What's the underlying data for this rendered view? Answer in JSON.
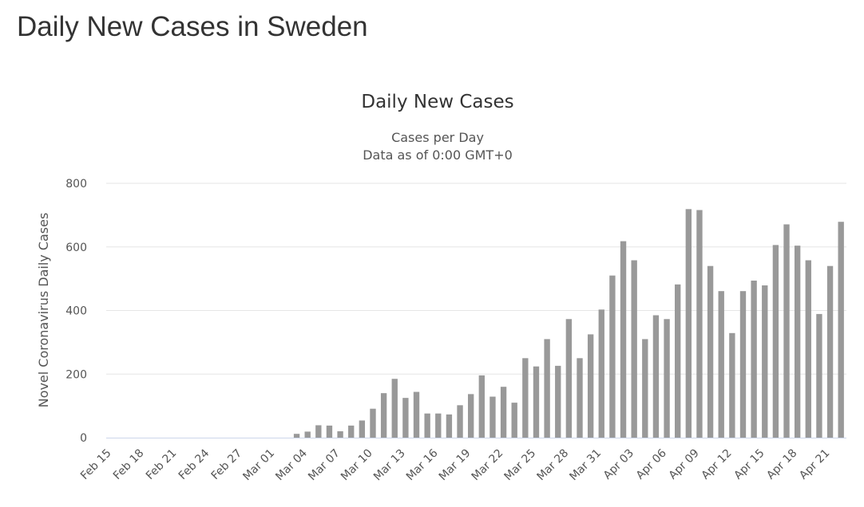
{
  "page": {
    "heading": "Daily New Cases in Sweden"
  },
  "chart_data": {
    "type": "bar",
    "title": "Daily New Cases",
    "subtitle_lines": [
      "Cases per Day",
      "Data as of 0:00 GMT+0"
    ],
    "xlabel": "",
    "ylabel": "Novel Coronavirus Daily Cases",
    "ylim": [
      0,
      800
    ],
    "yticks": [
      0,
      200,
      400,
      600,
      800
    ],
    "grid": true,
    "bar_color": "#999999",
    "grid_color": "#e6e6e6",
    "baseline_color": "#ccd6eb",
    "categories": [
      "Feb 15",
      "Feb 16",
      "Feb 17",
      "Feb 18",
      "Feb 19",
      "Feb 20",
      "Feb 21",
      "Feb 22",
      "Feb 23",
      "Feb 24",
      "Feb 25",
      "Feb 26",
      "Feb 27",
      "Feb 28",
      "Feb 29",
      "Mar 01",
      "Mar 02",
      "Mar 03",
      "Mar 04",
      "Mar 05",
      "Mar 06",
      "Mar 07",
      "Mar 08",
      "Mar 09",
      "Mar 10",
      "Mar 11",
      "Mar 12",
      "Mar 13",
      "Mar 14",
      "Mar 15",
      "Mar 16",
      "Mar 17",
      "Mar 18",
      "Mar 19",
      "Mar 20",
      "Mar 21",
      "Mar 22",
      "Mar 23",
      "Mar 24",
      "Mar 25",
      "Mar 26",
      "Mar 27",
      "Mar 28",
      "Mar 29",
      "Mar 30",
      "Mar 31",
      "Apr 01",
      "Apr 02",
      "Apr 03",
      "Apr 04",
      "Apr 05",
      "Apr 06",
      "Apr 07",
      "Apr 08",
      "Apr 09",
      "Apr 10",
      "Apr 11",
      "Apr 12",
      "Apr 13",
      "Apr 14",
      "Apr 15",
      "Apr 16",
      "Apr 17",
      "Apr 18",
      "Apr 19",
      "Apr 20",
      "Apr 21",
      "Apr 22"
    ],
    "x_tick_labels": [
      "Feb 15",
      "Feb 18",
      "Feb 21",
      "Feb 24",
      "Feb 27",
      "Mar 01",
      "Mar 04",
      "Mar 07",
      "Mar 10",
      "Mar 13",
      "Mar 16",
      "Mar 19",
      "Mar 22",
      "Mar 25",
      "Mar 28",
      "Mar 31",
      "Apr 03",
      "Apr 06",
      "Apr 09",
      "Apr 12",
      "Apr 15",
      "Apr 18",
      "Apr 21"
    ],
    "series": [
      {
        "values": [
          0,
          0,
          0,
          0,
          0,
          0,
          0,
          0,
          0,
          0,
          0,
          0,
          0,
          0,
          0,
          0,
          0,
          12,
          19,
          39,
          38,
          20,
          38,
          54,
          91,
          140,
          185,
          125,
          144,
          76,
          76,
          73,
          102,
          137,
          196,
          129,
          160,
          110,
          250,
          224,
          310,
          226,
          373,
          250,
          325,
          403,
          510,
          618,
          558,
          310,
          385,
          373,
          482,
          719,
          716,
          540,
          461,
          329,
          461,
          494,
          479,
          606,
          671,
          604,
          558,
          389,
          540,
          679
        ]
      }
    ]
  }
}
